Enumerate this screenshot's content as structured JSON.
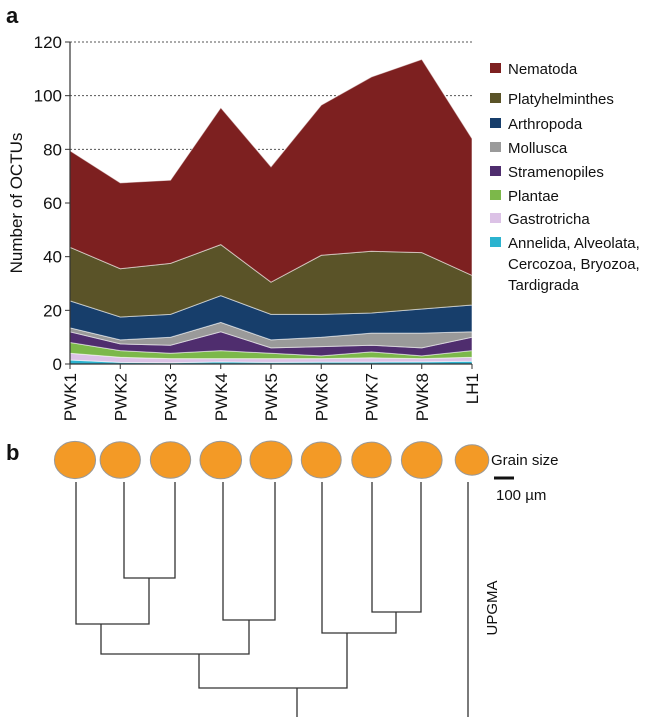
{
  "panel_a_label": "a",
  "panel_b_label": "b",
  "chart_data": {
    "type": "area",
    "stacked": true,
    "categories": [
      "PWK1",
      "PWK2",
      "PWK3",
      "PWK4",
      "PWK5",
      "PWK6",
      "PWK7",
      "PWK8",
      "LH1"
    ],
    "ylabel": "Number of OCTUs",
    "ylim": [
      0,
      120
    ],
    "yticks": [
      "0",
      "20",
      "40",
      "60",
      "80",
      "100",
      "120"
    ],
    "grid": "dotted horizontal lines at 80, 100, 120",
    "legend_position": "right",
    "series": [
      {
        "name": "Annelida, Alveolata, Cercozoa, Bryozoa, Tardigrada",
        "legend_lines": [
          "Annelida, Alveolata,",
          "Cercozoa, Bryozoa,",
          "Tardigrada"
        ],
        "color": "#2bb3cf",
        "values": [
          1.5,
          0.6,
          0.5,
          0.8,
          0.6,
          0.7,
          0.7,
          0.8,
          1.0
        ]
      },
      {
        "name": "Gastrotricha",
        "legend_lines": [
          "Gastrotricha"
        ],
        "color": "#dcc2e6",
        "values": [
          2.5,
          1.9,
          1.5,
          1.2,
          1.4,
          1.3,
          1.6,
          1.2,
          1.5
        ]
      },
      {
        "name": "Plantae",
        "legend_lines": [
          "Plantae"
        ],
        "color": "#7cb84a",
        "values": [
          4.0,
          2.5,
          2.0,
          3.0,
          2.0,
          1.0,
          2.2,
          1.0,
          2.5
        ]
      },
      {
        "name": "Stramenopiles",
        "legend_lines": [
          "Stramenopiles"
        ],
        "color": "#4f2d6e",
        "values": [
          4.0,
          2.5,
          3.0,
          7.0,
          2.0,
          3.5,
          2.5,
          3.0,
          5.0
        ]
      },
      {
        "name": "Mollusca",
        "legend_lines": [
          "Mollusca"
        ],
        "color": "#9a9a9a",
        "values": [
          1.5,
          1.5,
          3.0,
          3.5,
          3.0,
          3.5,
          4.5,
          5.5,
          2.0
        ]
      },
      {
        "name": "Arthropoda",
        "legend_lines": [
          "Arthropoda"
        ],
        "color": "#173e6b",
        "values": [
          10,
          8.5,
          8.5,
          10,
          9.5,
          8.5,
          7.5,
          9.0,
          10
        ]
      },
      {
        "name": "Platyhelminthes",
        "legend_lines": [
          "Platyhelminthes"
        ],
        "color": "#5a5328",
        "values": [
          20,
          18,
          19,
          19,
          12,
          22,
          23,
          21,
          11
        ]
      },
      {
        "name": "Nematoda",
        "legend_lines": [
          "Nematoda"
        ],
        "color": "#7d2020",
        "values": [
          36,
          32,
          31,
          51,
          43,
          56,
          65,
          72,
          51
        ]
      }
    ]
  },
  "panel_b": {
    "grain_size_label": "Grain size",
    "scale_label": "100 µm",
    "method_label": "UPGMA",
    "grain_color": "#f39a26",
    "grain_relative_sizes": [
      0.98,
      0.96,
      0.96,
      0.99,
      1.0,
      0.95,
      0.94,
      0.97,
      0.8
    ]
  }
}
